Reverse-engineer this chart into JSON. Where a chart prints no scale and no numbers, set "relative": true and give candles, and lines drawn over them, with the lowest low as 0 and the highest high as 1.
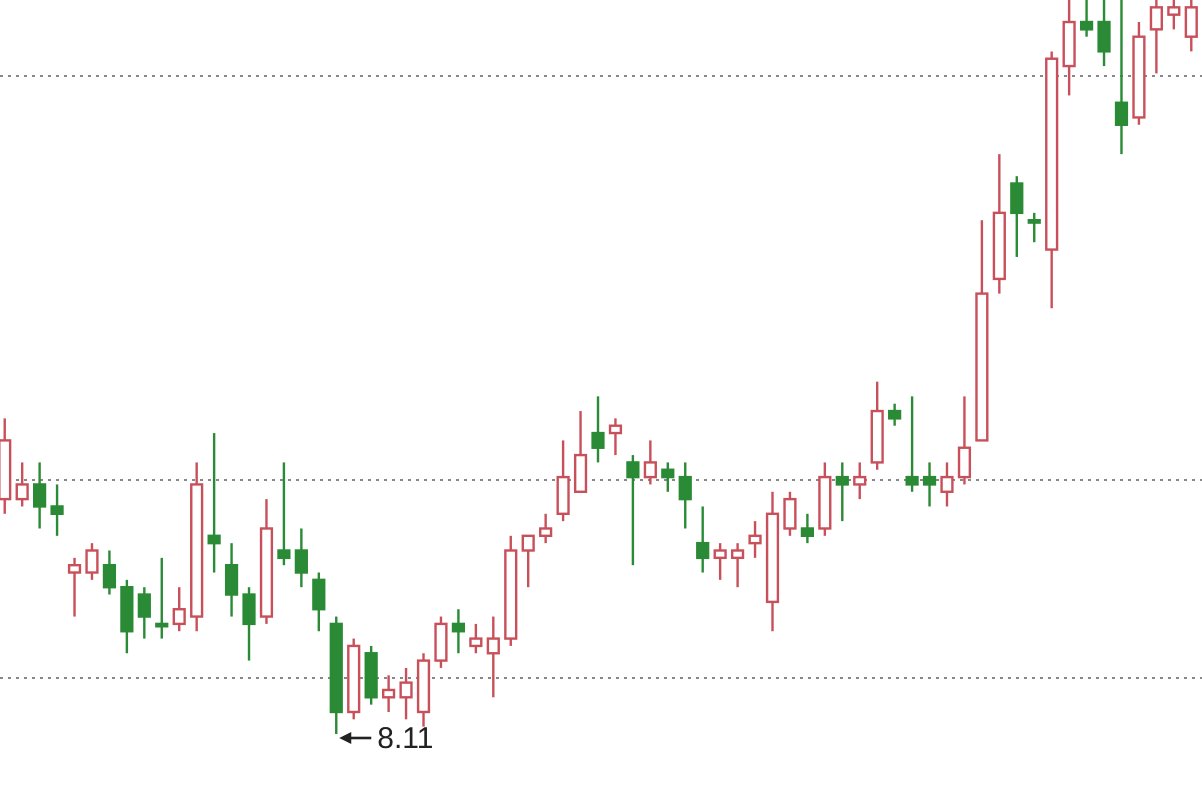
{
  "chart_data": {
    "type": "candlestick",
    "relative": true,
    "grid": true,
    "categories": [
      null,
      null,
      null,
      null,
      null,
      null,
      null,
      null,
      null,
      null,
      null,
      null,
      null,
      null,
      null,
      null,
      null,
      null,
      null,
      null,
      null,
      null,
      null,
      null,
      null,
      null,
      null,
      null,
      null,
      null,
      null,
      null,
      null,
      null,
      null,
      null,
      null,
      null,
      null,
      null,
      null,
      null,
      null,
      null,
      null,
      null,
      null,
      null,
      null,
      null,
      null,
      null,
      null,
      null,
      null,
      null,
      null,
      null,
      null,
      null,
      null,
      null,
      null,
      null,
      null,
      null,
      null,
      null,
      null
    ],
    "series": [
      {
        "colors": [
          "#c8505a",
          "#c8505a",
          "#2a8a35",
          "#2a8a35",
          "#c8505a",
          "#c8505a",
          "#2a8a35",
          "#2a8a35",
          "#2a8a35",
          "#2a8a35",
          "#c8505a",
          "#c8505a",
          "#2a8a35",
          "#2a8a35",
          "#2a8a35",
          "#c8505a",
          "#2a8a35",
          "#2a8a35",
          "#2a8a35",
          "#2a8a35",
          "#c8505a",
          "#2a8a35",
          "#c8505a",
          "#c8505a",
          "#c8505a",
          "#c8505a",
          "#2a8a35",
          "#c8505a",
          "#c8505a",
          "#c8505a",
          "#c8505a",
          "#c8505a",
          "#c8505a",
          "#c8505a",
          "#2a8a35",
          "#c8505a",
          "#2a8a35",
          "#c8505a",
          "#2a8a35",
          "#2a8a35",
          "#2a8a35",
          "#c8505a",
          "#c8505a",
          "#c8505a",
          "#c8505a",
          "#c8505a",
          "#2a8a35",
          "#c8505a",
          "#2a8a35",
          "#c8505a",
          "#c8505a",
          "#2a8a35",
          "#2a8a35",
          "#2a8a35",
          "#c8505a",
          "#c8505a",
          "#c8505a",
          "#c8505a",
          "#2a8a35",
          "#2a8a35",
          "#c8505a",
          "#c8505a",
          "#2a8a35",
          "#2a8a35",
          "#2a8a35",
          "#c8505a",
          "#c8505a",
          "#c8505a",
          "#c8505a"
        ],
        "ohlc": [
          [
            0.32,
            0.43,
            0.3,
            0.4
          ],
          [
            0.32,
            0.37,
            0.31,
            0.34
          ],
          [
            0.34,
            0.37,
            0.28,
            0.31
          ],
          [
            0.31,
            0.34,
            0.27,
            0.3
          ],
          [
            0.22,
            0.24,
            0.16,
            0.23
          ],
          [
            0.22,
            0.26,
            0.21,
            0.25
          ],
          [
            0.23,
            0.25,
            0.19,
            0.2
          ],
          [
            0.2,
            0.21,
            0.11,
            0.14
          ],
          [
            0.19,
            0.2,
            0.13,
            0.16
          ],
          [
            0.15,
            0.24,
            0.13,
            0.15
          ],
          [
            0.15,
            0.2,
            0.14,
            0.17
          ],
          [
            0.16,
            0.37,
            0.14,
            0.34
          ],
          [
            0.27,
            0.41,
            0.22,
            0.26
          ],
          [
            0.23,
            0.26,
            0.16,
            0.19
          ],
          [
            0.19,
            0.2,
            0.1,
            0.15
          ],
          [
            0.16,
            0.32,
            0.15,
            0.28
          ],
          [
            0.25,
            0.37,
            0.23,
            0.24
          ],
          [
            0.25,
            0.28,
            0.2,
            0.22
          ],
          [
            0.21,
            0.22,
            0.14,
            0.17
          ],
          [
            0.15,
            0.16,
            0,
            0.03
          ],
          [
            0.03,
            0.13,
            0.02,
            0.12
          ],
          [
            0.11,
            0.12,
            0.04,
            0.05
          ],
          [
            0.05,
            0.08,
            0.03,
            0.06
          ],
          [
            0.05,
            0.09,
            0.02,
            0.07
          ],
          [
            0.03,
            0.11,
            0.01,
            0.1
          ],
          [
            0.1,
            0.16,
            0.09,
            0.15
          ],
          [
            0.15,
            0.17,
            0.11,
            0.14
          ],
          [
            0.12,
            0.15,
            0.11,
            0.13
          ],
          [
            0.11,
            0.16,
            0.05,
            0.13
          ],
          [
            0.13,
            0.27,
            0.12,
            0.25
          ],
          [
            0.25,
            0.27,
            0.2,
            0.27
          ],
          [
            0.27,
            0.3,
            0.26,
            0.28
          ],
          [
            0.3,
            0.4,
            0.29,
            0.35
          ],
          [
            0.33,
            0.44,
            0.33,
            0.38
          ],
          [
            0.41,
            0.46,
            0.37,
            0.39
          ],
          [
            0.41,
            0.43,
            0.38,
            0.42
          ],
          [
            0.37,
            0.38,
            0.23,
            0.35
          ],
          [
            0.35,
            0.4,
            0.34,
            0.37
          ],
          [
            0.36,
            0.37,
            0.33,
            0.35
          ],
          [
            0.35,
            0.37,
            0.28,
            0.32
          ],
          [
            0.26,
            0.31,
            0.22,
            0.24
          ],
          [
            0.24,
            0.26,
            0.21,
            0.25
          ],
          [
            0.24,
            0.26,
            0.2,
            0.25
          ],
          [
            0.26,
            0.29,
            0.24,
            0.27
          ],
          [
            0.18,
            0.33,
            0.14,
            0.3
          ],
          [
            0.28,
            0.33,
            0.27,
            0.32
          ],
          [
            0.28,
            0.3,
            0.26,
            0.27
          ],
          [
            0.28,
            0.37,
            0.27,
            0.35
          ],
          [
            0.35,
            0.37,
            0.29,
            0.34
          ],
          [
            0.34,
            0.37,
            0.32,
            0.35
          ],
          [
            0.37,
            0.48,
            0.36,
            0.44
          ],
          [
            0.44,
            0.45,
            0.42,
            0.43
          ],
          [
            0.35,
            0.46,
            0.33,
            0.34
          ],
          [
            0.35,
            0.37,
            0.31,
            0.34
          ],
          [
            0.33,
            0.37,
            0.31,
            0.35
          ],
          [
            0.35,
            0.46,
            0.34,
            0.39
          ],
          [
            0.4,
            0.7,
            0.4,
            0.6
          ],
          [
            0.62,
            0.79,
            0.6,
            0.71
          ],
          [
            0.75,
            0.76,
            0.65,
            0.71
          ],
          [
            0.7,
            0.71,
            0.67,
            0.7
          ],
          [
            0.66,
            0.93,
            0.58,
            0.92
          ],
          [
            0.91,
            1,
            0.87,
            0.97
          ],
          [
            0.97,
            1,
            0.95,
            0.96
          ],
          [
            0.97,
            1,
            0.91,
            0.93
          ],
          [
            0.86,
            1,
            0.79,
            0.83
          ],
          [
            0.84,
            0.97,
            0.83,
            0.95
          ],
          [
            0.96,
            1,
            0.9,
            0.99
          ],
          [
            0.98,
            1,
            0.96,
            0.99
          ],
          [
            0.95,
            1,
            0.93,
            0.99
          ]
        ]
      }
    ],
    "annotations": [
      "8.11"
    ]
  }
}
